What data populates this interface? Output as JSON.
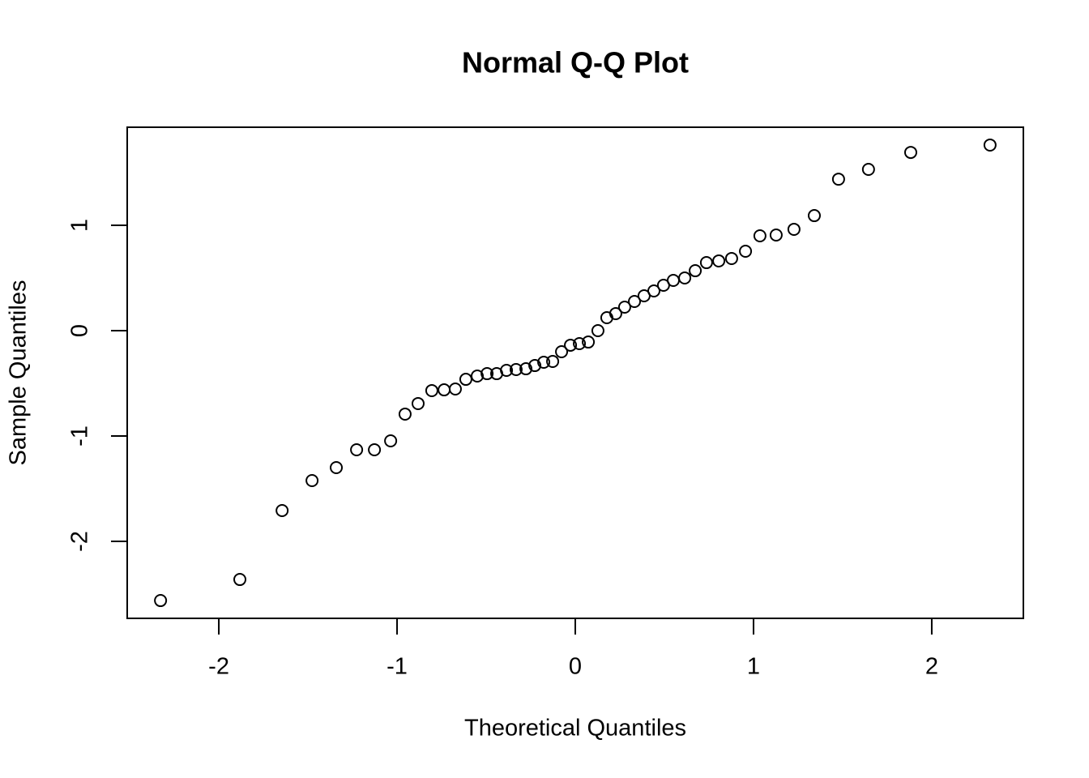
{
  "chart_data": {
    "type": "scatter",
    "title": "Normal Q-Q Plot",
    "x_label": "Theoretical Quantiles",
    "y_label": "Sample Quantiles",
    "x": [
      -2.327,
      -1.882,
      -1.645,
      -1.477,
      -1.341,
      -1.227,
      -1.127,
      -1.036,
      -0.955,
      -0.882,
      -0.805,
      -0.736,
      -0.673,
      -0.614,
      -0.55,
      -0.495,
      -0.441,
      -0.386,
      -0.332,
      -0.277,
      -0.227,
      -0.177,
      -0.127,
      -0.077,
      -0.027,
      0.023,
      0.073,
      0.127,
      0.177,
      0.227,
      0.277,
      0.332,
      0.386,
      0.441,
      0.495,
      0.55,
      0.614,
      0.673,
      0.736,
      0.805,
      0.877,
      0.955,
      1.036,
      1.127,
      1.227,
      1.341,
      1.477,
      1.645,
      1.882,
      2.327
    ],
    "values": [
      -2.562,
      -2.362,
      -1.708,
      -1.423,
      -1.3,
      -1.131,
      -1.131,
      -1.046,
      -0.792,
      -0.692,
      -0.569,
      -0.562,
      -0.554,
      -0.462,
      -0.431,
      -0.408,
      -0.408,
      -0.377,
      -0.369,
      -0.362,
      -0.331,
      -0.3,
      -0.292,
      -0.2,
      -0.138,
      -0.123,
      -0.108,
      0.0,
      0.123,
      0.162,
      0.223,
      0.277,
      0.331,
      0.377,
      0.431,
      0.477,
      0.5,
      0.569,
      0.646,
      0.662,
      0.685,
      0.754,
      0.9,
      0.908,
      0.962,
      1.092,
      1.438,
      1.531,
      1.692,
      1.762
    ],
    "color": "#000000",
    "xlim": [
      -2.514,
      2.514
    ],
    "ylim": [
      -2.731,
      1.931
    ],
    "xticks": [
      -2,
      -1,
      0,
      1,
      2
    ],
    "yticks": [
      -2,
      -1,
      0,
      1
    ]
  }
}
